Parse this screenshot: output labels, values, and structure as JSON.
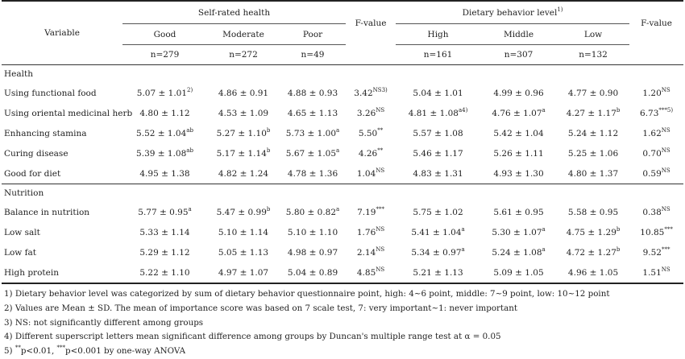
{
  "header": {
    "variable": "Variable",
    "group1": "Self-rated health",
    "group2": "Dietary behavior level",
    "group2_sup": "1)",
    "cols1": [
      "Good",
      "Moderate",
      "Poor"
    ],
    "cols2": [
      "High",
      "Middle",
      "Low"
    ],
    "fvalue": "F-value",
    "n1": [
      "n=279",
      "n=272",
      "n=49"
    ],
    "n2": [
      "n=161",
      "n=307",
      "n=132"
    ]
  },
  "sections": [
    {
      "title": "Health",
      "rows": [
        {
          "label": "Using functional food",
          "cells": [
            {
              "v": "5.07 ± 1.01",
              "s": "2)"
            },
            {
              "v": "4.86 ± 0.91",
              "s": ""
            },
            {
              "v": "4.88 ± 0.93",
              "s": ""
            },
            {
              "v": "3.42",
              "s": "NS3)"
            },
            {
              "v": "5.04 ± 1.01",
              "s": ""
            },
            {
              "v": "4.99 ± 0.96",
              "s": ""
            },
            {
              "v": "4.77 ± 0.90",
              "s": ""
            },
            {
              "v": "1.20",
              "s": "NS"
            }
          ]
        },
        {
          "label": "Using oriental medicinal herb",
          "cells": [
            {
              "v": "4.80 ± 1.12",
              "s": ""
            },
            {
              "v": "4.53 ± 1.09",
              "s": ""
            },
            {
              "v": "4.65 ± 1.13",
              "s": ""
            },
            {
              "v": "3.26",
              "s": "NS"
            },
            {
              "v": "4.81 ± 1.08",
              "s": "a4)"
            },
            {
              "v": "4.76 ± 1.07",
              "s": "a"
            },
            {
              "v": "4.27 ± 1.17",
              "s": "b"
            },
            {
              "v": "6.73",
              "s": "***5)"
            }
          ]
        },
        {
          "label": "Enhancing stamina",
          "cells": [
            {
              "v": "5.52 ± 1.04",
              "s": "ab"
            },
            {
              "v": "5.27 ± 1.10",
              "s": "b"
            },
            {
              "v": "5.73 ± 1.00",
              "s": "a"
            },
            {
              "v": "5.50",
              "s": "**"
            },
            {
              "v": "5.57 ± 1.08",
              "s": ""
            },
            {
              "v": "5.42 ± 1.04",
              "s": ""
            },
            {
              "v": "5.24 ± 1.12",
              "s": ""
            },
            {
              "v": "1.62",
              "s": "NS"
            }
          ]
        },
        {
          "label": "Curing disease",
          "cells": [
            {
              "v": "5.39 ± 1.08",
              "s": "ab"
            },
            {
              "v": "5.17 ± 1.14",
              "s": "b"
            },
            {
              "v": "5.67 ± 1.05",
              "s": "a"
            },
            {
              "v": "4.26",
              "s": "**"
            },
            {
              "v": "5.46 ± 1.17",
              "s": ""
            },
            {
              "v": "5.26 ± 1.11",
              "s": ""
            },
            {
              "v": "5.25 ± 1.06",
              "s": ""
            },
            {
              "v": "0.70",
              "s": "NS"
            }
          ]
        },
        {
          "label": "Good for diet",
          "cells": [
            {
              "v": "4.95 ± 1.38",
              "s": ""
            },
            {
              "v": "4.82 ± 1.24",
              "s": ""
            },
            {
              "v": "4.78 ± 1.36",
              "s": ""
            },
            {
              "v": "1.04",
              "s": "NS"
            },
            {
              "v": "4.83 ± 1.31",
              "s": ""
            },
            {
              "v": "4.93 ± 1.30",
              "s": ""
            },
            {
              "v": "4.80 ± 1.37",
              "s": ""
            },
            {
              "v": "0.59",
              "s": "NS"
            }
          ]
        }
      ]
    },
    {
      "title": "Nutrition",
      "rows": [
        {
          "label": "Balance in nutrition",
          "cells": [
            {
              "v": "5.77 ± 0.95",
              "s": "a"
            },
            {
              "v": "5.47 ± 0.99",
              "s": "b"
            },
            {
              "v": "5.80 ± 0.82",
              "s": "a"
            },
            {
              "v": "7.19",
              "s": "***"
            },
            {
              "v": "5.75 ± 1.02",
              "s": ""
            },
            {
              "v": "5.61 ± 0.95",
              "s": ""
            },
            {
              "v": "5.58 ± 0.95",
              "s": ""
            },
            {
              "v": "0.38",
              "s": "NS"
            }
          ]
        },
        {
          "label": "Low salt",
          "cells": [
            {
              "v": "5.33 ± 1.14",
              "s": ""
            },
            {
              "v": "5.10 ± 1.14",
              "s": ""
            },
            {
              "v": "5.10 ± 1.10",
              "s": ""
            },
            {
              "v": "1.76",
              "s": "NS"
            },
            {
              "v": "5.41 ± 1.04",
              "s": "a"
            },
            {
              "v": "5.30 ± 1.07",
              "s": "a"
            },
            {
              "v": "4.75 ± 1.29",
              "s": "b"
            },
            {
              "v": "10.85",
              "s": "***"
            }
          ]
        },
        {
          "label": "Low fat",
          "cells": [
            {
              "v": "5.29 ± 1.12",
              "s": ""
            },
            {
              "v": "5.05 ± 1.13",
              "s": ""
            },
            {
              "v": "4.98 ± 0.97",
              "s": ""
            },
            {
              "v": "2.14",
              "s": "NS"
            },
            {
              "v": "5.34 ± 0.97",
              "s": "a"
            },
            {
              "v": "5.24 ± 1.08",
              "s": "a"
            },
            {
              "v": "4.72 ± 1.27",
              "s": "b"
            },
            {
              "v": "9.52",
              "s": "***"
            }
          ]
        },
        {
          "label": "High protein",
          "cells": [
            {
              "v": "5.22 ± 1.10",
              "s": ""
            },
            {
              "v": "4.97 ± 1.07",
              "s": ""
            },
            {
              "v": "5.04 ± 0.89",
              "s": ""
            },
            {
              "v": "4.85",
              "s": "NS"
            },
            {
              "v": "5.21 ± 1.13",
              "s": ""
            },
            {
              "v": "5.09 ± 1.05",
              "s": ""
            },
            {
              "v": "4.96 ± 1.05",
              "s": ""
            },
            {
              "v": "1.51",
              "s": "NS"
            }
          ]
        }
      ]
    }
  ],
  "notes": [
    "1) Dietary behavior level was categorized by sum of dietary behavior questionnaire point, high: 4~6 point, middle: 7~9 point, low: 10~12 point",
    "2) Values are Mean ± SD. The mean of importance score was based on 7 scale test, 7: very important~1: never important",
    "3) NS: not significantly different among groups",
    "4) Different superscript letters mean significant difference among groups by Duncan's multiple range test at α = 0.05"
  ],
  "note5": {
    "sup1": "**",
    "text1": "p<0.01, ",
    "sup2": "***",
    "text2": "p<0.001 by one-way ANOVA"
  }
}
